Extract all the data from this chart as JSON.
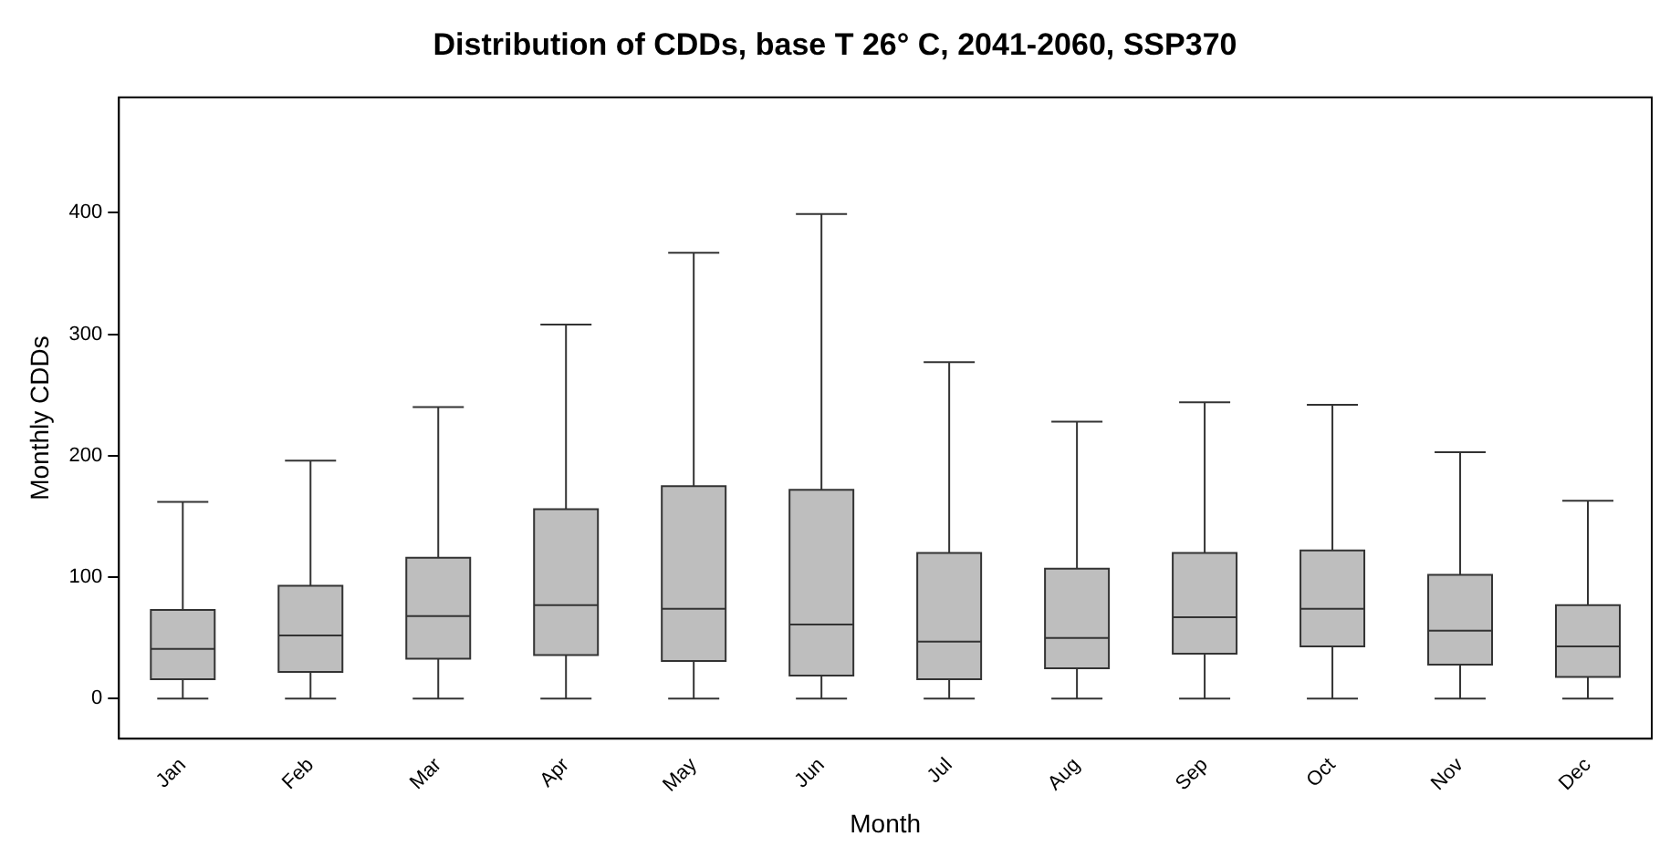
{
  "chart_data": {
    "type": "box",
    "title": "Distribution of CDDs, base T 26° C, 2041-2060, SSP370",
    "xlabel": "Month",
    "ylabel": "Monthly CDDs",
    "categories": [
      "Jan",
      "Feb",
      "Mar",
      "Apr",
      "May",
      "Jun",
      "Jul",
      "Aug",
      "Sep",
      "Oct",
      "Nov",
      "Dec"
    ],
    "color": "#bebebe",
    "boxes": [
      {
        "low": 0,
        "q1": 16,
        "median": 41,
        "q3": 73,
        "high": 162
      },
      {
        "low": 0,
        "q1": 22,
        "median": 52,
        "q3": 93,
        "high": 196
      },
      {
        "low": 0,
        "q1": 33,
        "median": 68,
        "q3": 116,
        "high": 240
      },
      {
        "low": 0,
        "q1": 36,
        "median": 77,
        "q3": 156,
        "high": 308
      },
      {
        "low": 0,
        "q1": 31,
        "median": 74,
        "q3": 175,
        "high": 367
      },
      {
        "low": 0,
        "q1": 19,
        "median": 61,
        "q3": 172,
        "high": 399
      },
      {
        "low": 0,
        "q1": 16,
        "median": 47,
        "q3": 120,
        "high": 277
      },
      {
        "low": 0,
        "q1": 25,
        "median": 50,
        "q3": 107,
        "high": 228
      },
      {
        "low": 0,
        "q1": 37,
        "median": 67,
        "q3": 120,
        "high": 244
      },
      {
        "low": 0,
        "q1": 43,
        "median": 74,
        "q3": 122,
        "high": 242
      },
      {
        "low": 0,
        "q1": 28,
        "median": 56,
        "q3": 102,
        "high": 203
      },
      {
        "low": 0,
        "q1": 18,
        "median": 43,
        "q3": 77,
        "high": 163
      }
    ],
    "ylim": [
      -33,
      495
    ],
    "yticks": [
      0,
      100,
      200,
      300,
      400
    ],
    "grid": false,
    "legend": false
  }
}
